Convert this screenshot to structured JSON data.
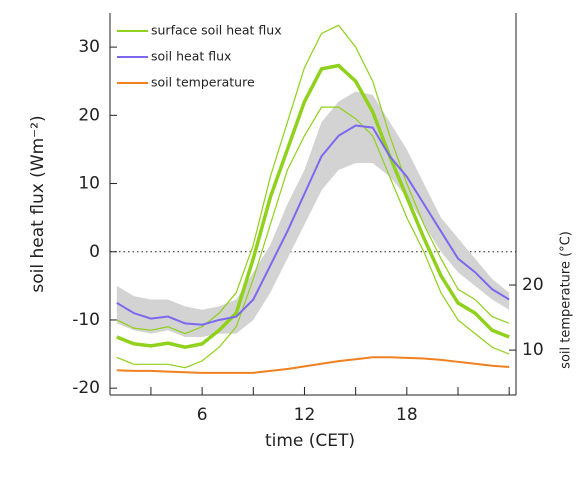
{
  "chart_data": {
    "type": "line",
    "x": [
      1,
      2,
      3,
      4,
      5,
      6,
      7,
      8,
      9,
      10,
      11,
      12,
      13,
      14,
      15,
      16,
      17,
      18,
      19,
      20,
      21,
      22,
      23,
      24
    ],
    "xlim": [
      0.6,
      24.4
    ],
    "xticks": [
      6,
      12,
      18
    ],
    "xminorticks": [
      3,
      9,
      15,
      21,
      24
    ],
    "ylim": [
      -21,
      35
    ],
    "yticks": [
      -20,
      -10,
      0,
      10,
      20,
      30
    ],
    "y2lim": [
      3.1,
      61.8
    ],
    "y2ticks": [
      10,
      20
    ],
    "hline": 0,
    "xlabel": "time (CET)",
    "ylabel": "soil heat flux (Wm⁻²)",
    "y2label": "soil temperature (°C)",
    "legend": "upper left",
    "series": [
      {
        "name": "surface soil heat flux",
        "color": "#8fd11b",
        "band": "lines",
        "values": [
          -12.5,
          -13.5,
          -13.8,
          -13.4,
          -14,
          -13.5,
          -11.5,
          -9,
          -1,
          8,
          15,
          22,
          26.8,
          27.3,
          25,
          20.5,
          14,
          8,
          2,
          -3.5,
          -7.5,
          -9,
          -11.5,
          -12.5
        ],
        "upper": [
          -10,
          -11.2,
          -11.5,
          -11,
          -12,
          -11,
          -9,
          -6,
          1,
          11,
          19,
          27,
          32,
          33.2,
          30,
          25,
          17,
          10,
          4,
          -1,
          -5.5,
          -7,
          -9.5,
          -10.5
        ],
        "lower": [
          -15.5,
          -16.5,
          -16.5,
          -16.5,
          -17,
          -16,
          -14,
          -11,
          -4,
          4,
          12,
          17,
          21.2,
          21.2,
          19.5,
          17,
          11,
          5,
          0,
          -6,
          -10,
          -12,
          -14,
          -15
        ]
      },
      {
        "name": "soil heat flux",
        "color": "#7b68ee",
        "band": "fill",
        "band_color": "#d3d3d3",
        "values": [
          -7.5,
          -9,
          -9.8,
          -9.5,
          -10.5,
          -10.7,
          -10,
          -9.5,
          -7,
          -2,
          3,
          8.5,
          14,
          17,
          18.5,
          18.2,
          14,
          11,
          7,
          3,
          -1,
          -3,
          -5.5,
          -7
        ],
        "upper": [
          -5,
          -6.5,
          -7,
          -7,
          -8,
          -8.5,
          -8,
          -7,
          -3,
          1,
          7,
          12,
          19,
          22,
          23.5,
          23,
          19,
          15,
          10,
          5,
          2,
          -1,
          -4,
          -6
        ],
        "lower": [
          -10.5,
          -11.5,
          -12,
          -11.5,
          -12.5,
          -12.5,
          -12,
          -12,
          -10,
          -6,
          -1,
          4,
          9,
          12,
          13,
          13,
          11,
          8,
          4,
          0,
          -3,
          -5,
          -7,
          -8.5
        ]
      },
      {
        "name": "soil temperature",
        "color": "#f08020",
        "axis": "y2",
        "values": [
          6.9,
          6.8,
          6.8,
          6.7,
          6.6,
          6.5,
          6.5,
          6.5,
          6.5,
          6.8,
          7.1,
          7.5,
          7.9,
          8.3,
          8.6,
          8.9,
          8.9,
          8.8,
          8.7,
          8.5,
          8.2,
          7.9,
          7.6,
          7.4
        ]
      }
    ]
  }
}
